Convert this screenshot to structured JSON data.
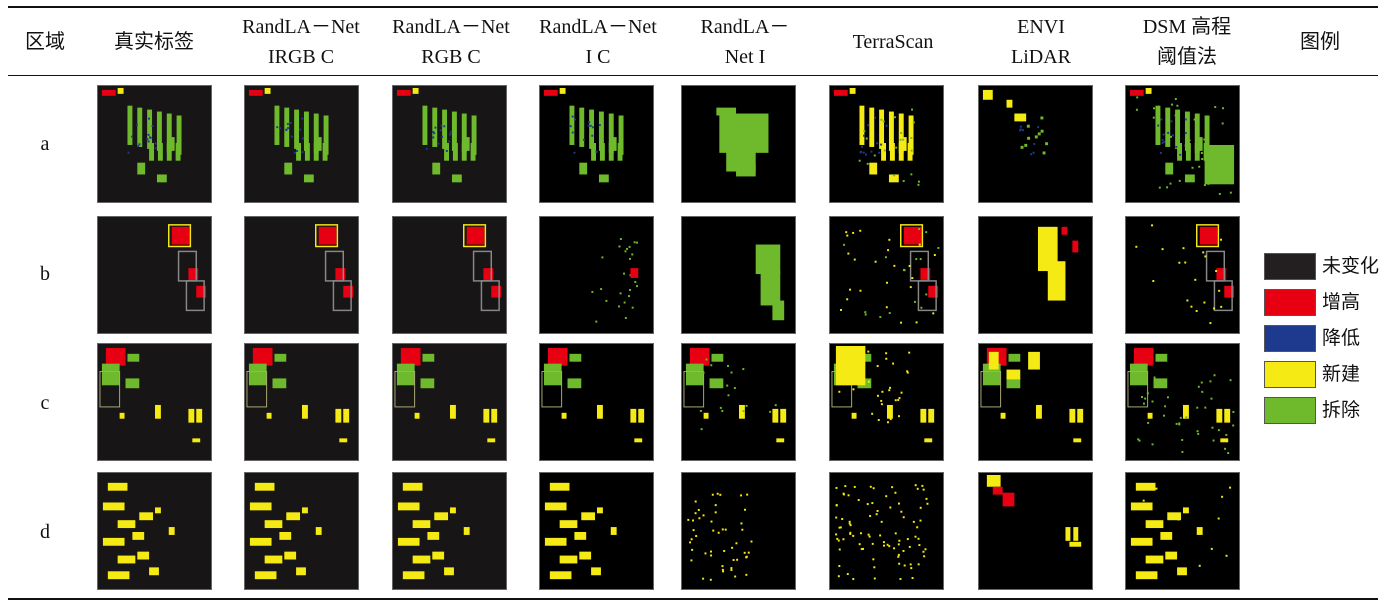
{
  "table": {
    "headers": [
      {
        "line1": "区域",
        "line2": ""
      },
      {
        "line1": "真实标签",
        "line2": ""
      },
      {
        "line1": "RandLA－Net",
        "line2": "IRGB C"
      },
      {
        "line1": "RandLA－Net",
        "line2": "RGB C"
      },
      {
        "line1": "RandLA－Net",
        "line2": "I C"
      },
      {
        "line1": "RandLA－",
        "line2": "Net I"
      },
      {
        "line1": "TerraScan",
        "line2": ""
      },
      {
        "line1": "ENVI",
        "line2": "LiDAR"
      },
      {
        "line1": "DSM 高程",
        "line2": "阈值法"
      },
      {
        "line1": "图例",
        "line2": ""
      }
    ],
    "rows": [
      {
        "label": "a"
      },
      {
        "label": "b"
      },
      {
        "label": "c"
      },
      {
        "label": "d"
      }
    ]
  },
  "legend": {
    "items": [
      {
        "label": "未变化",
        "color": "#231f20"
      },
      {
        "label": "增高",
        "color": "#e60012"
      },
      {
        "label": "降低",
        "color": "#1d3a8f"
      },
      {
        "label": "新建",
        "color": "#f5ea14"
      },
      {
        "label": "拆除",
        "color": "#6fba2c"
      }
    ]
  }
}
